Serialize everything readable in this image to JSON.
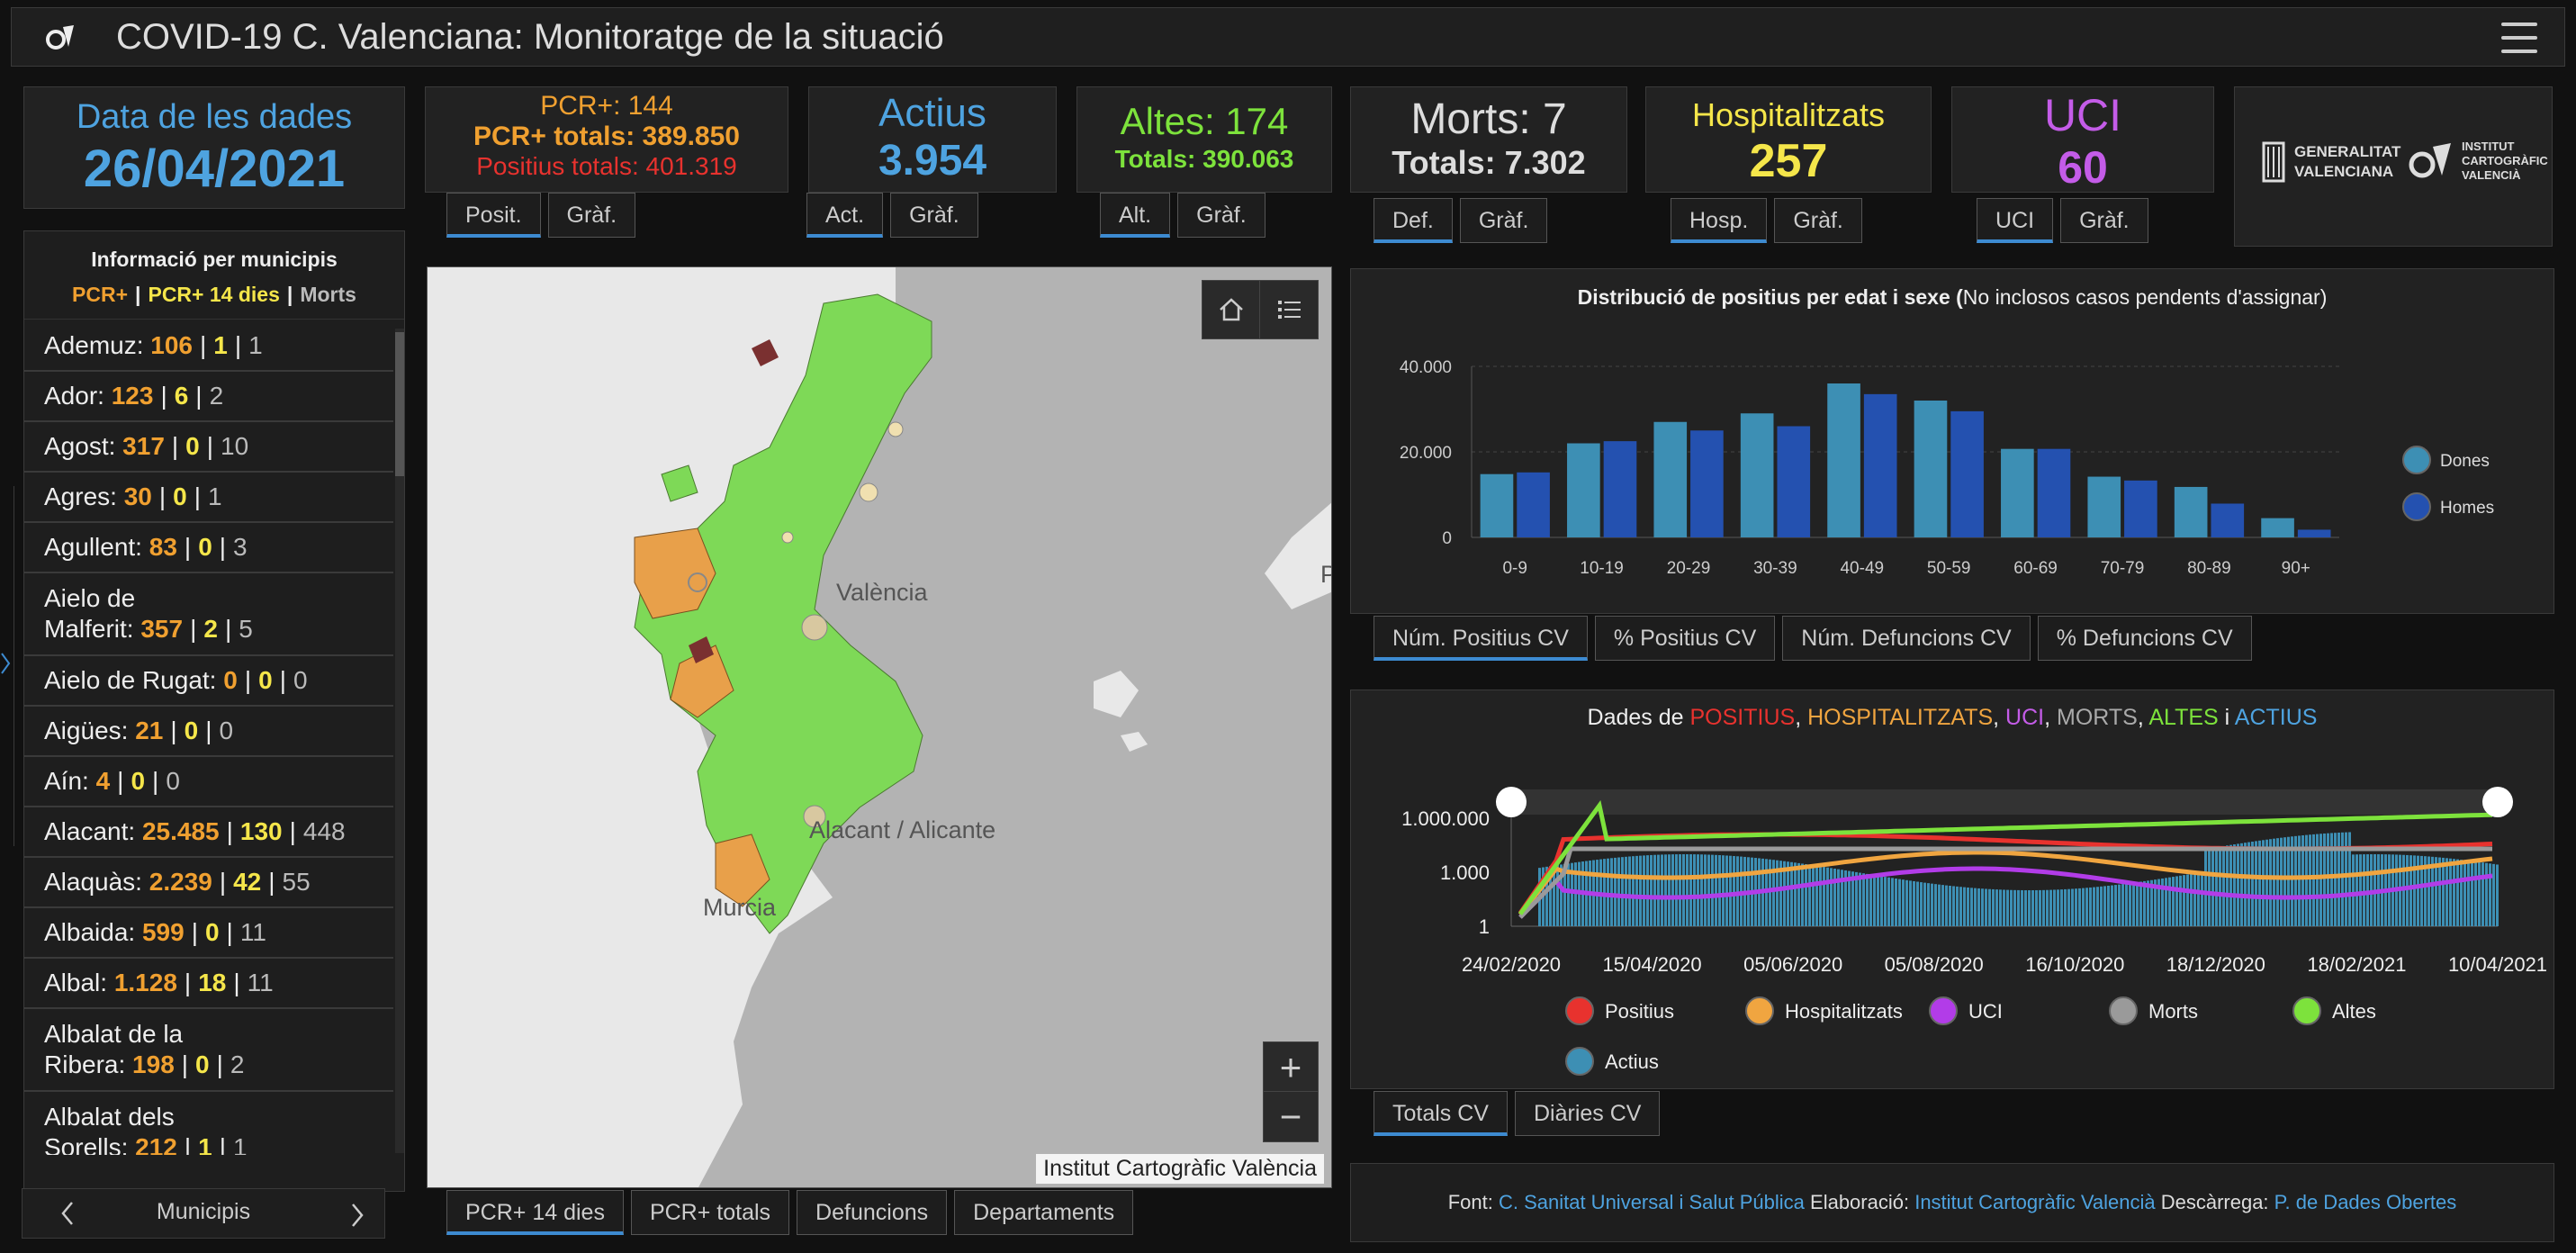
{
  "header": {
    "title": "COVID-19 C. Valenciana: Monitoratge de la situació"
  },
  "date_box": {
    "label": "Data de les dades",
    "value": "26/04/2021"
  },
  "stats": {
    "pcr": {
      "line1": "PCR+: 144",
      "line2": "PCR+ totals: 389.850",
      "line3": "Positius totals: 401.319",
      "tab1": "Posit.",
      "tab2": "Gràf."
    },
    "actius": {
      "label": "Actius",
      "value": "3.954",
      "tab1": "Act.",
      "tab2": "Gràf."
    },
    "altes": {
      "label": "Altes: 174",
      "total": "Totals: 390.063",
      "tab1": "Alt.",
      "tab2": "Gràf."
    },
    "morts": {
      "label": "Morts: 7",
      "total": "Totals: 7.302",
      "tab1": "Def.",
      "tab2": "Gràf."
    },
    "hosp": {
      "label": "Hospitalitzats",
      "value": "257",
      "tab1": "Hosp.",
      "tab2": "Gràf."
    },
    "uci": {
      "label": "UCI",
      "value": "60",
      "tab1": "UCI",
      "tab2": "Gràf."
    }
  },
  "logos": {
    "gva": [
      "GENERALITAT",
      "VALENCIANA"
    ],
    "icv": [
      "INSTITUT",
      "CARTOGRÀFIC",
      "VALENCIÀ"
    ]
  },
  "sidebar": {
    "title": "Informació per municipis",
    "legend": {
      "a": "PCR+",
      "b": "PCR+ 14 dies",
      "c": "Morts"
    },
    "footer_label": "Municipis",
    "municipalities": [
      {
        "name": "Ademuz:",
        "a": "106",
        "b": "1",
        "c": "1"
      },
      {
        "name": "Ador:",
        "a": "123",
        "b": "6",
        "c": "2"
      },
      {
        "name": "Agost:",
        "a": "317",
        "b": "0",
        "c": "10"
      },
      {
        "name": "Agres:",
        "a": "30",
        "b": "0",
        "c": "1"
      },
      {
        "name": "Agullent:",
        "a": "83",
        "b": "0",
        "c": "3"
      },
      {
        "name1": "Aielo de",
        "name": "Malferit:",
        "a": "357",
        "b": "2",
        "c": "5"
      },
      {
        "name": "Aielo de Rugat:",
        "a": "0",
        "b": "0",
        "c": "0"
      },
      {
        "name": "Aigües:",
        "a": "21",
        "b": "0",
        "c": "0"
      },
      {
        "name": "Aín:",
        "a": "4",
        "b": "0",
        "c": "0"
      },
      {
        "name": "Alacant:",
        "a": "25.485",
        "b": "130",
        "c": "448"
      },
      {
        "name": "Alaquàs:",
        "a": "2.239",
        "b": "42",
        "c": "55"
      },
      {
        "name": "Albaida:",
        "a": "599",
        "b": "0",
        "c": "11"
      },
      {
        "name": "Albal:",
        "a": "1.128",
        "b": "18",
        "c": "11"
      },
      {
        "name1": "Albalat de la",
        "name": "Ribera:",
        "a": "198",
        "b": "0",
        "c": "2"
      },
      {
        "name1": "Albalat dels",
        "name": "Sorells:",
        "a": "212",
        "b": "1",
        "c": "1"
      }
    ]
  },
  "map": {
    "labels": {
      "valencia": "València",
      "alacant": "Alacant / Alicante",
      "murcia": "Murcia",
      "p": "P"
    },
    "attribution": "Institut Cartogràfic València",
    "zoom_in": "+",
    "zoom_out": "−",
    "tabs": [
      "PCR+ 14 dies",
      "PCR+ totals",
      "Defuncions",
      "Departaments"
    ]
  },
  "age_chart": {
    "title_bold": "Distribució de positius per edat i sexe (",
    "title_rest": "No inclosos casos pendents d'assignar)",
    "tabs": [
      "Núm. Positius CV",
      "% Positius CV",
      "Núm. Defuncions CV",
      "% Defuncions CV"
    ]
  },
  "ts_chart": {
    "title": {
      "prefix": "Dades de ",
      "positius": "POSITIUS",
      "sep1": ", ",
      "hosp": "HOSPITALITZATS",
      "sep2": ", ",
      "uci": "UCI",
      "sep3": ", ",
      "morts": "MORTS",
      "sep4": ", ",
      "altes": "ALTES",
      "sep5": " i ",
      "actius": "ACTIUS"
    },
    "tabs": [
      "Totals CV",
      "Diàries CV"
    ]
  },
  "source": {
    "font_label": "Font: ",
    "font_link": "C. Sanitat Universal i Salut Pública",
    "elab_label": " Elaboració: ",
    "elab_link": "Institut Cartogràfic Valencià",
    "desc_label": " Descàrrega: ",
    "desc_link": "P. de Dades Obertes"
  },
  "chart_data": [
    {
      "type": "bar",
      "title": "Distribució de positius per edat i sexe (No inclosos casos pendents d'assignar)",
      "categories": [
        "0-9",
        "10-19",
        "20-29",
        "30-39",
        "40-49",
        "50-59",
        "60-69",
        "70-79",
        "80-89",
        "90+"
      ],
      "series": [
        {
          "name": "Dones",
          "color": "#3d8fb4",
          "values": [
            14800,
            22000,
            27000,
            29000,
            36000,
            32000,
            20700,
            14200,
            11800,
            4500
          ]
        },
        {
          "name": "Homes",
          "color": "#2451b0",
          "values": [
            15200,
            22500,
            25000,
            26000,
            33500,
            29500,
            20700,
            13300,
            7900,
            1800
          ]
        }
      ],
      "yticks": [
        "0",
        "20.000",
        "40.000"
      ],
      "ylim": [
        0,
        40000
      ],
      "legend": "right"
    },
    {
      "type": "line",
      "yscale": "log",
      "yticks": [
        "1",
        "1.000",
        "1.000.000"
      ],
      "xticks": [
        "24/02/2020",
        "15/04/2020",
        "05/06/2020",
        "05/08/2020",
        "16/10/2020",
        "18/12/2020",
        "18/02/2021",
        "10/04/2021"
      ],
      "series": [
        {
          "name": "Positius",
          "color": "#e8322e"
        },
        {
          "name": "Hospitalitzats",
          "color": "#f0a540"
        },
        {
          "name": "UCI",
          "color": "#b23ce8"
        },
        {
          "name": "Morts",
          "color": "#9a9a9a"
        },
        {
          "name": "Altes",
          "color": "#7de23c"
        },
        {
          "name": "Actius",
          "color": "#3d8fb4"
        }
      ],
      "legend": "bottom"
    }
  ]
}
